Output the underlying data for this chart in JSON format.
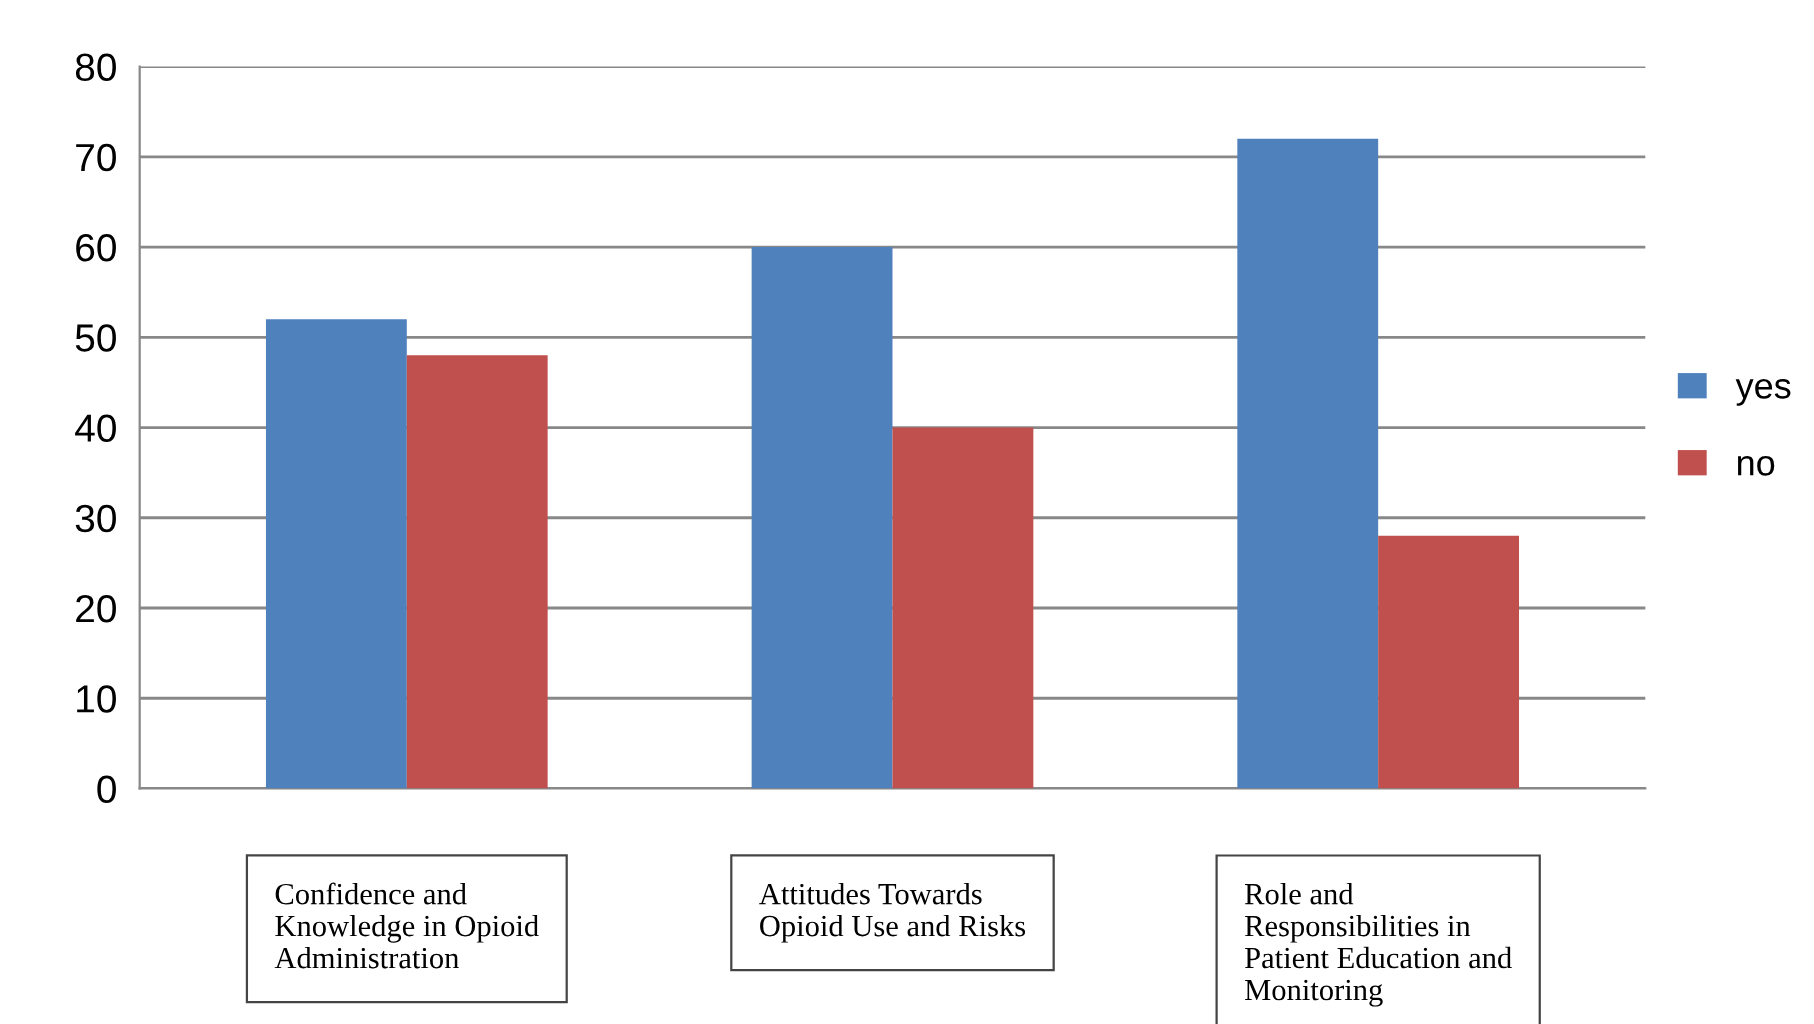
{
  "chart_data": {
    "type": "bar",
    "categories": [
      "Confidence and\nKnowledge in Opioid\nAdministration",
      "Attitudes Towards\nOpioid Use and Risks",
      "Role and\nResponsibilities in\nPatient Education and\nMonitoring"
    ],
    "series": [
      {
        "name": "yes",
        "color": "#4f81bd",
        "values": [
          52,
          60,
          72
        ]
      },
      {
        "name": "no",
        "color": "#c0504d",
        "values": [
          48,
          40,
          28
        ]
      }
    ],
    "ylim": [
      0,
      80
    ],
    "yticks": [
      0,
      10,
      20,
      30,
      40,
      50,
      60,
      70,
      80
    ],
    "grid": "y",
    "legend": "right"
  }
}
